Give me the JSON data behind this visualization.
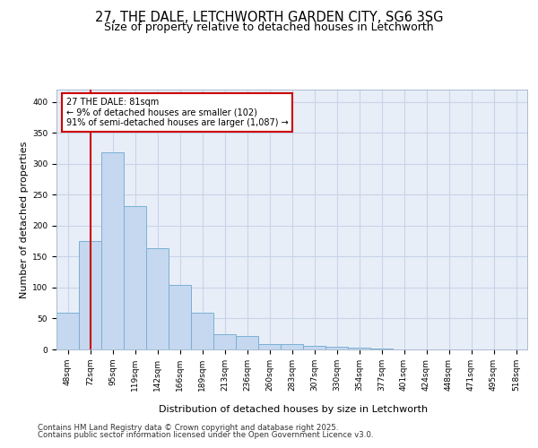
{
  "title_line1": "27, THE DALE, LETCHWORTH GARDEN CITY, SG6 3SG",
  "title_line2": "Size of property relative to detached houses in Letchworth",
  "xlabel": "Distribution of detached houses by size in Letchworth",
  "ylabel": "Number of detached properties",
  "bins": [
    "48sqm",
    "72sqm",
    "95sqm",
    "119sqm",
    "142sqm",
    "166sqm",
    "189sqm",
    "213sqm",
    "236sqm",
    "260sqm",
    "283sqm",
    "307sqm",
    "330sqm",
    "354sqm",
    "377sqm",
    "401sqm",
    "424sqm",
    "448sqm",
    "471sqm",
    "495sqm",
    "518sqm"
  ],
  "values": [
    60,
    175,
    318,
    232,
    163,
    104,
    60,
    25,
    22,
    8,
    8,
    6,
    5,
    3,
    1,
    0,
    0,
    0,
    0,
    0,
    0
  ],
  "bar_color": "#c5d8f0",
  "bar_edge_color": "#7bafd4",
  "grid_color": "#c8d4e8",
  "background_color": "#e8eef8",
  "vline_x": 1.0,
  "vline_color": "#cc0000",
  "annotation_text": "27 THE DALE: 81sqm\n← 9% of detached houses are smaller (102)\n91% of semi-detached houses are larger (1,087) →",
  "annotation_box_facecolor": "#ffffff",
  "annotation_box_edgecolor": "#cc0000",
  "annotation_fontsize": 7.0,
  "ylim": [
    0,
    420
  ],
  "yticks": [
    0,
    50,
    100,
    150,
    200,
    250,
    300,
    350,
    400
  ],
  "footer_line1": "Contains HM Land Registry data © Crown copyright and database right 2025.",
  "footer_line2": "Contains public sector information licensed under the Open Government Licence v3.0.",
  "title_fontsize": 10.5,
  "subtitle_fontsize": 9.0,
  "axis_label_fontsize": 8.0,
  "tick_fontsize": 6.5,
  "footer_fontsize": 6.2
}
